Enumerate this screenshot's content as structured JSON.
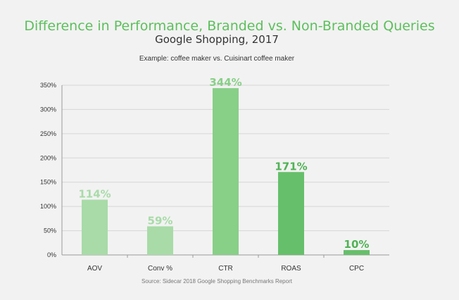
{
  "chart_data": {
    "type": "bar",
    "title": "Difference in Performance, Branded vs. Non-Branded Queries",
    "subtitle": "Google Shopping, 2017",
    "note": "Example: coffee maker vs. Cuisinart coffee maker",
    "source": "Source: Sidecar 2018 Google Shopping Benchmarks Report",
    "categories": [
      "AOV",
      "Conv %",
      "CTR",
      "ROAS",
      "CPC"
    ],
    "values": [
      114,
      59,
      344,
      171,
      10
    ],
    "data_labels": [
      "114%",
      "59%",
      "344%",
      "171%",
      "10%"
    ],
    "bar_colors": [
      "#a8dba8",
      "#a8dba8",
      "#88cf88",
      "#66bf6b",
      "#66bf6b"
    ],
    "label_colors": [
      "#a8dba8",
      "#a8dba8",
      "#88cf88",
      "#4fb255",
      "#4fb255"
    ],
    "y_ticks": [
      0,
      50,
      100,
      150,
      200,
      250,
      300,
      350
    ],
    "y_tick_labels": [
      "0%",
      "50%",
      "100%",
      "150%",
      "200%",
      "250%",
      "300%",
      "350%"
    ],
    "ylim": [
      0,
      350
    ],
    "xlabel": "",
    "ylabel": "",
    "grid": true,
    "legend": "none"
  },
  "colors": {
    "title": "#5cbf5c",
    "grid": "#d6d6d6",
    "axis": "#999999",
    "background": "#f2f2f2"
  }
}
